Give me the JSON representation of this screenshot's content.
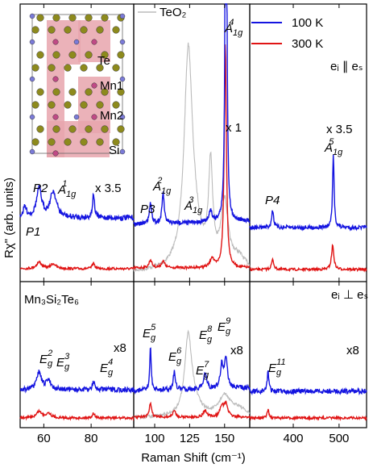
{
  "chart_data": {
    "type": "line",
    "xlabel": "Raman Shift (cm⁻¹)",
    "ylabel": "Rχ\" (arb. units)",
    "panels": [
      {
        "id": "low",
        "xlim": [
          50,
          98
        ],
        "xticks": [
          60,
          80
        ]
      },
      {
        "id": "mid",
        "xlim": [
          85,
          168
        ],
        "xticks": [
          100,
          125,
          150
        ]
      },
      {
        "id": "high",
        "xlim": [
          305,
          560
        ],
        "xticks": [
          400,
          500
        ]
      }
    ],
    "legend": {
      "items": [
        "100 K",
        "300 K"
      ],
      "colors": [
        "#1414e0",
        "#e01414"
      ],
      "placement": "top-right"
    },
    "reference_series": {
      "name": "TeO₂",
      "color": "#bbbbbb"
    },
    "top_labels": {
      "parallel": "eᵢ ∥ eₛ",
      "scale_mid": "x 1",
      "scale_low": "x 3.5",
      "scale_high": "x 3.5"
    },
    "bottom_labels": {
      "compound": "Mn₃Si₂Te₆",
      "cross": "eᵢ ⊥ eₛ",
      "scale_low": "x8",
      "scale_mid": "x8",
      "scale_high": "x8"
    },
    "inset_labels": {
      "te": "Te",
      "mn1": "Mn1",
      "mn2": "Mn2",
      "si": "Si"
    },
    "peaks_top": [
      {
        "name": "P1",
        "x": 52
      },
      {
        "name": "P2",
        "x": 58
      },
      {
        "name": "A1g^1",
        "x": 64
      },
      {
        "name": "P3",
        "x": 97
      },
      {
        "name": "A1g^2",
        "x": 106
      },
      {
        "name": "A1g^3",
        "x": 140
      },
      {
        "name": "A1g^4",
        "x": 151
      },
      {
        "name": "P4",
        "x": 355
      },
      {
        "name": "A1g^5",
        "x": 488
      }
    ],
    "peaks_bottom": [
      {
        "name": "Eg^2",
        "x": 58
      },
      {
        "name": "Eg^3",
        "x": 62
      },
      {
        "name": "Eg^4",
        "x": 81
      },
      {
        "name": "Eg^5",
        "x": 97
      },
      {
        "name": "Eg^6",
        "x": 114
      },
      {
        "name": "Eg^7",
        "x": 136
      },
      {
        "name": "Eg^8",
        "x": 148
      },
      {
        "name": "Eg^9",
        "x": 151
      },
      {
        "name": "Eg^11",
        "x": 345
      }
    ],
    "labels": {
      "P1": "P1",
      "P2": "P2",
      "P3": "P3",
      "P4": "P4",
      "A": "A",
      "E": "E",
      "sub_1g": "1g",
      "sub_g": "g",
      "s1": "1",
      "s2": "2",
      "s3": "3",
      "s4": "4",
      "s5": "5",
      "s6": "6",
      "s7": "7",
      "s8": "8",
      "s9": "9",
      "s11": "11"
    }
  }
}
